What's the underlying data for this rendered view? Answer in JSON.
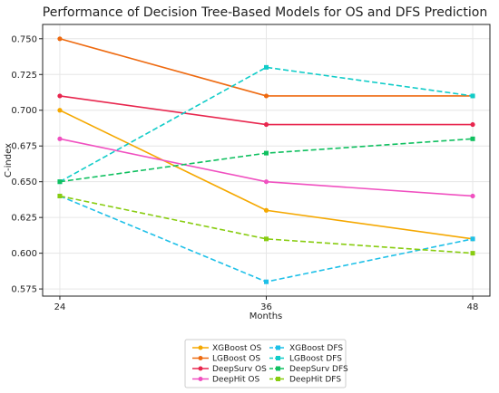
{
  "chart_data": {
    "type": "line",
    "title": "Performance of Decision Tree-Based Models for OS and DFS Prediction",
    "xlabel": "Months",
    "ylabel": "C-index",
    "x": [
      24,
      36,
      48
    ],
    "x_ticks": [
      "24",
      "36",
      "48"
    ],
    "xlim": [
      23,
      49
    ],
    "ylim": [
      0.57,
      0.76
    ],
    "y_ticks": [
      "0.575",
      "0.600",
      "0.625",
      "0.650",
      "0.675",
      "0.700",
      "0.725",
      "0.750"
    ],
    "grid": true,
    "legend_position": "bottom-center",
    "series": [
      {
        "name": "XGBoost OS",
        "values": [
          0.7,
          0.63,
          0.61
        ],
        "color": "#f5a800",
        "dashed": false,
        "marker": "circle"
      },
      {
        "name": "LGBoost OS",
        "values": [
          0.75,
          0.71,
          0.71
        ],
        "color": "#ee6a10",
        "dashed": false,
        "marker": "circle"
      },
      {
        "name": "DeepSurv OS",
        "values": [
          0.71,
          0.69,
          0.69
        ],
        "color": "#e8264e",
        "dashed": false,
        "marker": "circle"
      },
      {
        "name": "DeepHit OS",
        "values": [
          0.68,
          0.65,
          0.64
        ],
        "color": "#f050c0",
        "dashed": false,
        "marker": "circle"
      },
      {
        "name": "XGBoost DFS",
        "values": [
          0.64,
          0.58,
          0.61
        ],
        "color": "#1ec0e8",
        "dashed": true,
        "marker": "square"
      },
      {
        "name": "LGBoost DFS",
        "values": [
          0.65,
          0.73,
          0.71
        ],
        "color": "#10ccc8",
        "dashed": true,
        "marker": "square"
      },
      {
        "name": "DeepSurv DFS",
        "values": [
          0.65,
          0.67,
          0.68
        ],
        "color": "#10c060",
        "dashed": true,
        "marker": "square"
      },
      {
        "name": "DeepHit DFS",
        "values": [
          0.64,
          0.61,
          0.6
        ],
        "color": "#88cc10",
        "dashed": true,
        "marker": "square"
      }
    ]
  }
}
